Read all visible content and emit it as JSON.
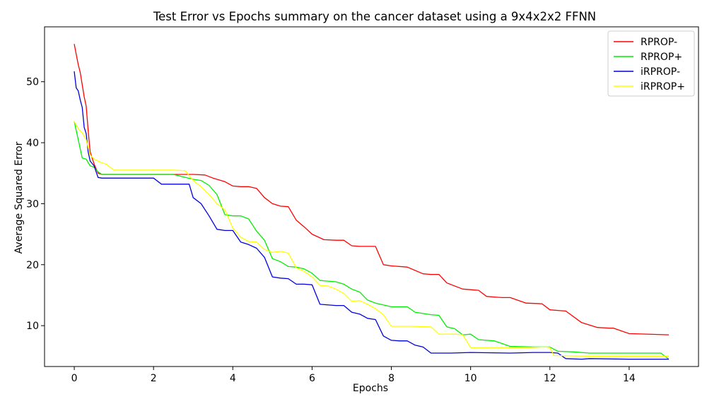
{
  "chart_data": {
    "type": "line",
    "title": "Test Error vs Epochs summary on the cancer dataset using a 9x4x2x2 FFNN",
    "xlabel": "Epochs",
    "ylabel": "Average Squared Error",
    "xlim": [
      -0.75,
      15.75
    ],
    "ylim": [
      3.3,
      59.0
    ],
    "xticks": [
      0,
      2,
      4,
      6,
      8,
      10,
      12,
      14
    ],
    "yticks": [
      10,
      20,
      30,
      40,
      50
    ],
    "grid": false,
    "legend_position": "top-right",
    "series": [
      {
        "name": "RPROP-",
        "color": "#ff0000",
        "x": [
          0,
          0.05,
          0.1,
          0.15,
          0.2,
          0.25,
          0.3,
          0.35,
          0.4,
          0.5,
          0.6,
          0.7,
          1.0,
          2.0,
          3.0,
          3.3,
          3.5,
          3.8,
          4.0,
          4.2,
          4.4,
          4.6,
          4.8,
          5.0,
          5.2,
          5.4,
          5.6,
          5.8,
          6.0,
          6.3,
          6.6,
          6.8,
          7.0,
          7.2,
          7.4,
          7.6,
          7.8,
          8.0,
          8.4,
          8.8,
          9.0,
          9.2,
          9.4,
          9.8,
          10.0,
          10.2,
          10.4,
          10.6,
          10.8,
          11.0,
          11.4,
          11.8,
          12.0,
          12.2,
          12.4,
          12.8,
          13.2,
          13.5,
          13.6,
          14.0,
          15.0
        ],
        "y": [
          56.2,
          54.5,
          52.8,
          51.5,
          49.5,
          47.5,
          46.0,
          42.0,
          38.5,
          36.5,
          35.0,
          34.8,
          34.8,
          34.8,
          34.8,
          34.7,
          34.2,
          33.6,
          32.9,
          32.8,
          32.8,
          32.5,
          31.0,
          30.0,
          29.6,
          29.5,
          27.3,
          26.2,
          25.0,
          24.1,
          24.0,
          24.0,
          23.1,
          23.0,
          23.0,
          23.0,
          20.0,
          19.8,
          19.6,
          18.5,
          18.4,
          18.4,
          17.0,
          16.0,
          15.9,
          15.8,
          14.8,
          14.7,
          14.6,
          14.6,
          13.7,
          13.6,
          12.6,
          12.5,
          12.4,
          10.5,
          9.7,
          9.6,
          9.6,
          8.7,
          8.5
        ]
      },
      {
        "name": "RPROP+",
        "color": "#00ee00",
        "x": [
          0,
          0.1,
          0.2,
          0.3,
          0.4,
          0.5,
          0.6,
          0.7,
          1.0,
          2.0,
          2.5,
          3.0,
          3.2,
          3.4,
          3.6,
          3.8,
          4.0,
          4.2,
          4.4,
          4.6,
          4.8,
          5.0,
          5.2,
          5.4,
          5.6,
          5.8,
          6.0,
          6.2,
          6.4,
          6.6,
          6.8,
          7.0,
          7.2,
          7.4,
          7.6,
          8.0,
          8.4,
          8.6,
          9.0,
          9.2,
          9.4,
          9.6,
          9.8,
          10.0,
          10.2,
          10.6,
          11.0,
          11.6,
          12.0,
          12.2,
          12.6,
          13.0,
          14.0,
          14.8,
          15.0
        ],
        "y": [
          43.5,
          40.5,
          37.5,
          37.3,
          36.2,
          36.0,
          35.2,
          34.8,
          34.8,
          34.8,
          34.8,
          34.0,
          33.8,
          33.0,
          31.5,
          28.2,
          28.0,
          28.0,
          27.5,
          25.5,
          24.0,
          21.0,
          20.5,
          19.7,
          19.6,
          19.3,
          18.6,
          17.4,
          17.3,
          17.2,
          16.8,
          16.0,
          15.5,
          14.2,
          13.7,
          13.1,
          13.1,
          12.2,
          11.8,
          11.7,
          9.8,
          9.5,
          8.5,
          8.6,
          7.7,
          7.5,
          6.6,
          6.5,
          6.5,
          5.8,
          5.7,
          5.5,
          5.5,
          5.5,
          4.5
        ]
      },
      {
        "name": "iRPROP-",
        "color": "#0000dd",
        "x": [
          0,
          0.05,
          0.1,
          0.15,
          0.2,
          0.25,
          0.3,
          0.35,
          0.4,
          0.5,
          0.6,
          0.7,
          1.0,
          2.0,
          2.2,
          2.5,
          2.9,
          3.0,
          3.2,
          3.4,
          3.6,
          3.8,
          4.0,
          4.2,
          4.4,
          4.6,
          4.8,
          5.0,
          5.2,
          5.4,
          5.6,
          5.8,
          6.0,
          6.2,
          6.6,
          6.8,
          7.0,
          7.2,
          7.4,
          7.6,
          7.8,
          8.0,
          8.2,
          8.4,
          8.6,
          8.8,
          9.0,
          9.5,
          10.0,
          11.0,
          11.6,
          12.0,
          12.2,
          12.4,
          12.8,
          13.0,
          14.0,
          15.0
        ],
        "y": [
          51.7,
          49.0,
          48.5,
          47.0,
          45.8,
          42.5,
          41.5,
          38.5,
          37.0,
          36.2,
          34.3,
          34.2,
          34.2,
          34.2,
          33.2,
          33.2,
          33.2,
          31.0,
          30.0,
          28.0,
          25.8,
          25.6,
          25.6,
          23.7,
          23.3,
          22.7,
          21.2,
          18.0,
          17.8,
          17.7,
          16.8,
          16.8,
          16.7,
          13.5,
          13.3,
          13.3,
          12.2,
          11.9,
          11.2,
          11.0,
          8.3,
          7.6,
          7.5,
          7.5,
          6.8,
          6.5,
          5.5,
          5.5,
          5.6,
          5.5,
          5.6,
          5.6,
          5.5,
          4.6,
          4.5,
          4.6,
          4.5,
          4.5
        ]
      },
      {
        "name": "iRPROP+",
        "color": "#ffff00",
        "x": [
          0,
          0.1,
          0.2,
          0.3,
          0.4,
          0.5,
          0.6,
          0.7,
          0.8,
          1.0,
          2.0,
          2.5,
          2.8,
          3.0,
          3.2,
          3.4,
          3.6,
          3.8,
          4.0,
          4.2,
          4.4,
          4.6,
          4.8,
          5.0,
          5.2,
          5.4,
          5.6,
          5.8,
          6.0,
          6.2,
          6.4,
          6.6,
          6.8,
          7.0,
          7.2,
          7.4,
          7.6,
          7.8,
          8.0,
          8.5,
          9.0,
          9.2,
          9.6,
          9.8,
          10.0,
          10.5,
          11.0,
          11.5,
          11.9,
          12.0,
          12.1,
          13.0,
          14.0,
          15.0
        ],
        "y": [
          43.5,
          42.3,
          41.6,
          40.5,
          38.0,
          37.3,
          37.0,
          36.7,
          36.5,
          35.5,
          35.5,
          35.5,
          35.4,
          33.8,
          32.8,
          31.5,
          30.0,
          29.0,
          26.0,
          24.5,
          23.8,
          23.7,
          22.5,
          22.0,
          22.2,
          21.9,
          19.5,
          18.9,
          18.0,
          16.6,
          16.5,
          16.0,
          15.3,
          14.0,
          14.1,
          13.5,
          12.8,
          11.8,
          9.9,
          9.9,
          9.8,
          8.6,
          8.6,
          8.5,
          6.4,
          6.4,
          6.4,
          6.4,
          6.5,
          6.4,
          5.1,
          5.0,
          5.0,
          5.0
        ]
      }
    ]
  }
}
